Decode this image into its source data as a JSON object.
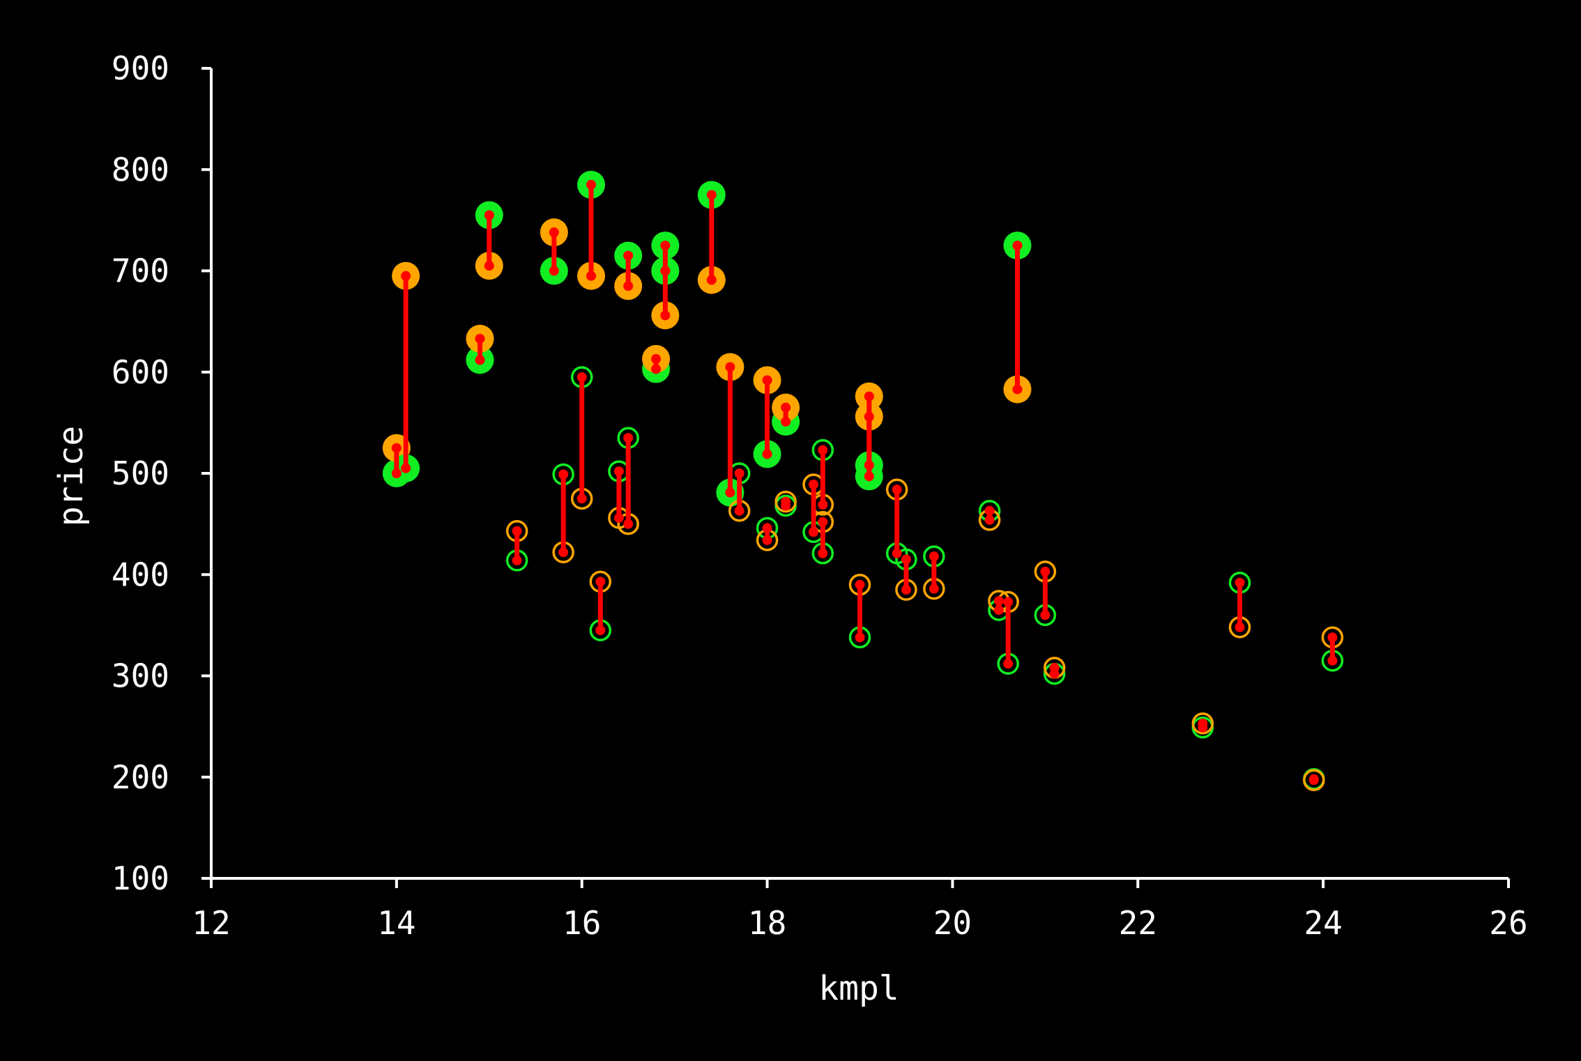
{
  "chart_data": {
    "type": "scatter",
    "title": "",
    "xlabel": "kmpl",
    "ylabel": "price",
    "xlim": [
      12,
      26
    ],
    "ylim": [
      100,
      900
    ],
    "xticks": [
      "12",
      "14",
      "16",
      "18",
      "20",
      "22",
      "24",
      "26"
    ],
    "yticks": [
      "100",
      "200",
      "300",
      "400",
      "500",
      "600",
      "700",
      "800",
      "900"
    ],
    "grid": false,
    "legend": "none",
    "colors": {
      "background": "#000000",
      "axis": "#ffffff",
      "actual": "#11ee22",
      "predicted": "#ffa500",
      "residual": "#ff0000"
    },
    "series": [
      {
        "marker": "filled-large",
        "points": [
          {
            "x": 14.0,
            "actual": 500,
            "predicted": 525
          },
          {
            "x": 14.1,
            "actual": 505,
            "predicted": 695
          },
          {
            "x": 14.9,
            "actual": 612,
            "predicted": 633
          },
          {
            "x": 15.0,
            "actual": 755,
            "predicted": 705
          },
          {
            "x": 15.7,
            "actual": 700,
            "predicted": 738
          },
          {
            "x": 16.1,
            "actual": 785,
            "predicted": 695
          },
          {
            "x": 16.5,
            "actual": 715,
            "predicted": 685
          },
          {
            "x": 16.8,
            "actual": 603,
            "predicted": 613
          },
          {
            "x": 16.9,
            "actual": 725,
            "predicted": 700
          },
          {
            "x": 16.9,
            "actual": 700,
            "predicted": 656
          },
          {
            "x": 17.4,
            "actual": 775,
            "predicted": 691
          },
          {
            "x": 17.6,
            "actual": 481,
            "predicted": 605
          },
          {
            "x": 18.0,
            "actual": 519,
            "predicted": 592
          },
          {
            "x": 18.2,
            "actual": 551,
            "predicted": 565
          },
          {
            "x": 19.1,
            "actual": 508,
            "predicted": 576
          },
          {
            "x": 19.1,
            "actual": 497,
            "predicted": 556
          },
          {
            "x": 20.7,
            "actual": 725,
            "predicted": 583
          }
        ]
      },
      {
        "marker": "open-small",
        "points": [
          {
            "x": 15.3,
            "actual": 414,
            "predicted": 443
          },
          {
            "x": 15.8,
            "actual": 499,
            "predicted": 422
          },
          {
            "x": 16.0,
            "actual": 595,
            "predicted": 475
          },
          {
            "x": 16.2,
            "actual": 345,
            "predicted": 393
          },
          {
            "x": 16.4,
            "actual": 502,
            "predicted": 456
          },
          {
            "x": 16.5,
            "actual": 535,
            "predicted": 450
          },
          {
            "x": 17.7,
            "actual": 500,
            "predicted": 463
          },
          {
            "x": 18.0,
            "actual": 446,
            "predicted": 434
          },
          {
            "x": 18.2,
            "actual": 468,
            "predicted": 472
          },
          {
            "x": 18.5,
            "actual": 442,
            "predicted": 489
          },
          {
            "x": 18.6,
            "actual": 523,
            "predicted": 469
          },
          {
            "x": 18.6,
            "actual": 421,
            "predicted": 452
          },
          {
            "x": 19.0,
            "actual": 338,
            "predicted": 390
          },
          {
            "x": 19.4,
            "actual": 421,
            "predicted": 484
          },
          {
            "x": 19.5,
            "actual": 415,
            "predicted": 385
          },
          {
            "x": 19.8,
            "actual": 418,
            "predicted": 386
          },
          {
            "x": 20.4,
            "actual": 463,
            "predicted": 454
          },
          {
            "x": 20.5,
            "actual": 365,
            "predicted": 374
          },
          {
            "x": 20.6,
            "actual": 312,
            "predicted": 373
          },
          {
            "x": 21.0,
            "actual": 360,
            "predicted": 403
          },
          {
            "x": 21.1,
            "actual": 302,
            "predicted": 308
          },
          {
            "x": 22.7,
            "actual": 249,
            "predicted": 253
          },
          {
            "x": 23.1,
            "actual": 392,
            "predicted": 348
          },
          {
            "x": 23.9,
            "actual": 198,
            "predicted": 197
          },
          {
            "x": 24.1,
            "actual": 315,
            "predicted": 338
          }
        ]
      }
    ]
  }
}
